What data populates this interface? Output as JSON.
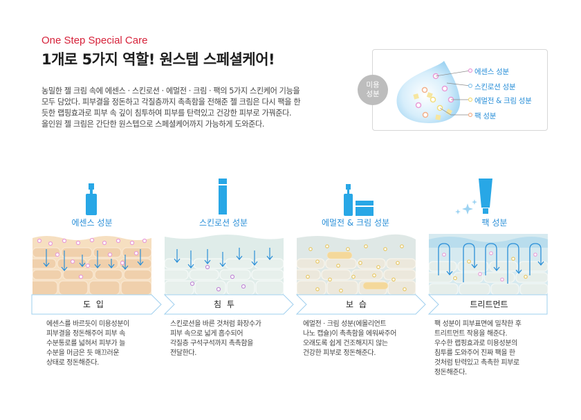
{
  "header": {
    "subtitle": "One Step Special Care",
    "title": "1개로 5가지 역할! 원스텝 스페셜케어!"
  },
  "description": [
    "농밀한 젤 크림 속에 에센스 · 스킨로션 · 에멀전 · 크림 · 팩의 5가지 스킨케어 기능을",
    "모두 담았다. 피부결을 정돈하고 각질층까지 촉촉함을 전해준 젤 크림은 다시 팩을 한",
    "듯한 랩핑효과로 피부 속 깊이 침투하여 피부를 탄력있고 건강한 피부로 가꿔준다.",
    "올인원 젤 크림은 간단한 원스텝으로 스페셜케어까지 가능하게 도와준다."
  ],
  "legend": {
    "badge": "미용\n성분",
    "items": [
      "에센스 성분",
      "스킨로션 성분",
      "에멀전 & 크림 성분",
      "팩 성분"
    ],
    "dot_colors": [
      "#e89ad6",
      "#8ec8ef",
      "#f2dc7a",
      "#f3b08a"
    ]
  },
  "steps": [
    {
      "ingredient": "에센스 성분",
      "label": "도 입",
      "desc": [
        "에센스를 바르듯이 미용성분이",
        "피부결을 정돈해주어 피부 속",
        "수분통로를 넓혀서 피부가 늘",
        "수분을 머금은 듯 매끄러운",
        "상태로 정돈해준다."
      ]
    },
    {
      "ingredient": "스킨로션 성분",
      "label": "침 투",
      "desc": [
        "스킨로션을 바른 것처럼 화장수가",
        "피부 속으로 넓게 흡수되어",
        "각질층 구석구석까지 촉촉함을",
        "전달한다."
      ]
    },
    {
      "ingredient": "에멀전 & 크림 성분",
      "label": "보 습",
      "desc": [
        "에멀전 · 크림 성분(에몰리언트",
        "나노 캡슐)이 촉촉함을 에워싸주어",
        "오래도록 쉽게 건조해지지 않는",
        "건강한 피부로 정돈해준다."
      ]
    },
    {
      "ingredient": "팩 성분",
      "label": "트리트먼트",
      "desc": [
        "팩 성분이 피부표면에 밀착한 후",
        "트리트먼트 작용을 해준다.",
        "우수한 랩핑효과로 미용성분의",
        "침투를 도와주어 진짜 팩을 한",
        "것처럼 탄력있고 촉촉한 피부로",
        "정돈해준다."
      ]
    }
  ],
  "colors": {
    "accent_red": "#d6223a",
    "accent_blue": "#2a8fd8",
    "product_blue": "#28a7e6"
  }
}
